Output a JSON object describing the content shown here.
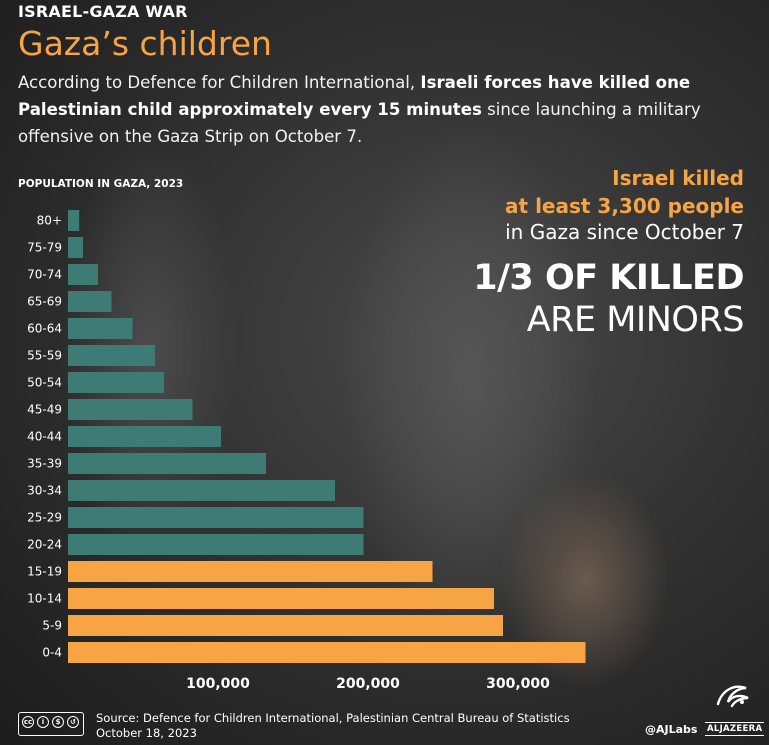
{
  "header": {
    "kicker": "ISRAEL-GAZA WAR",
    "title": "Gaza’s children",
    "subtitle_pre": "According to Defence for Children International, ",
    "subtitle_bold": "Israeli forces have killed one Palestinian child approximately every 15 minutes",
    "subtitle_post": " since launching a military offensive on the Gaza Strip on October 7."
  },
  "callout": {
    "line1": "Israel killed",
    "line2": "at least 3,300 people",
    "line3": "in Gaza since October 7",
    "big_line1": "1/3 OF KILLED",
    "big_line2": "ARE MINORS"
  },
  "footer": {
    "source_line1": "Source:  Defence for Children International, Palestinian Central Bureau of Statistics",
    "source_line2": "October 18, 2023",
    "handle": "@AJLabs",
    "brand_word": "ALJAZEERA",
    "license_icons": [
      "cc-icon",
      "by-icon",
      "nc-icon",
      "sa-icon"
    ]
  },
  "colors": {
    "adult": "#3e7b74",
    "child": "#f7a445",
    "accent": "#f7a445"
  },
  "chart_data": {
    "type": "bar",
    "orientation": "horizontal",
    "title": "POPULATION IN GAZA, 2023",
    "categories": [
      "80+",
      "75-79",
      "70-74",
      "65-69",
      "60-64",
      "55-59",
      "50-54",
      "45-49",
      "40-44",
      "35-39",
      "30-34",
      "25-29",
      "20-24",
      "15-19",
      "10-14",
      "5-9",
      "0-4"
    ],
    "values": [
      7500,
      10000,
      20000,
      29000,
      43000,
      58000,
      64000,
      83000,
      102000,
      132000,
      178000,
      197000,
      197000,
      243000,
      284000,
      290000,
      345000
    ],
    "child_categories": [
      "15-19",
      "10-14",
      "5-9",
      "0-4"
    ],
    "xticks": [
      100000,
      200000,
      300000
    ],
    "xtick_labels": [
      "100,000",
      "200,000",
      "300,000"
    ],
    "xlim": [
      0,
      470000
    ],
    "grid": false,
    "legend": "none"
  }
}
